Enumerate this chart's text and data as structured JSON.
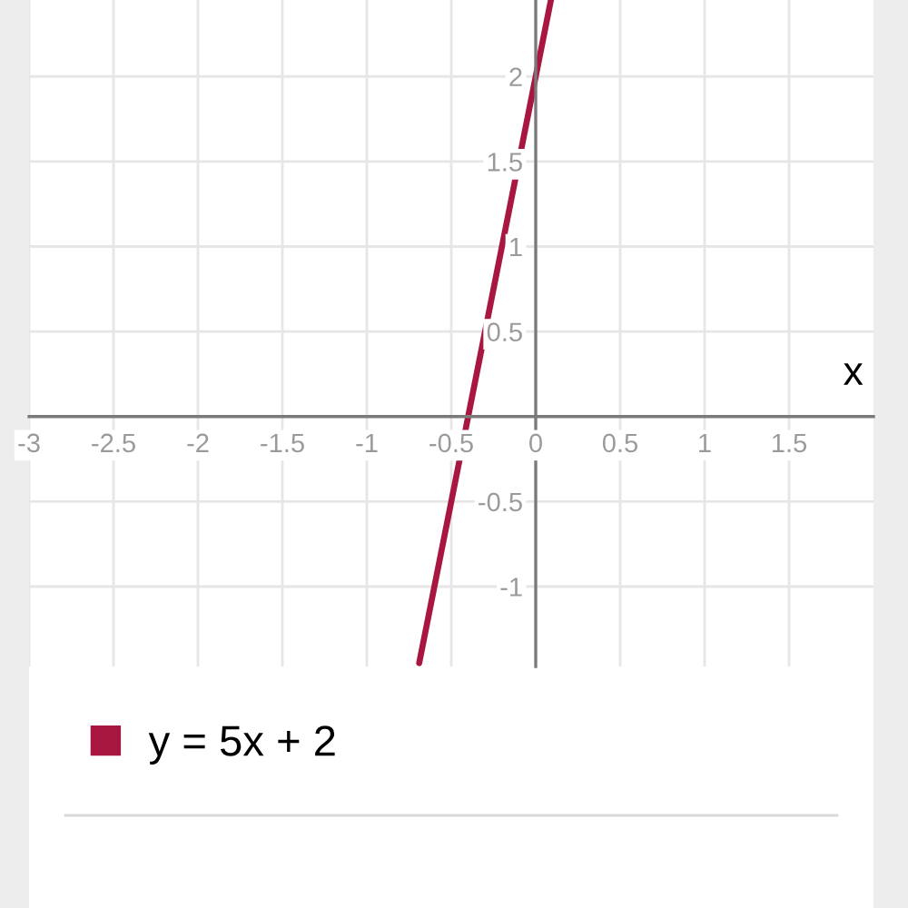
{
  "chart_data": {
    "type": "line",
    "xlabel": "x",
    "x": [
      -0.69,
      -0.4,
      0,
      0.09
    ],
    "series": [
      {
        "name": "y = 5x + 2",
        "color": "#a8173f",
        "values": [
          -1.45,
          0,
          2,
          2.45
        ]
      }
    ],
    "xlim": [
      -3,
      2
    ],
    "ylim": [
      -1.47,
      2.45
    ],
    "xticks": [
      -3,
      -2.5,
      -2,
      -1.5,
      -1,
      -0.5,
      0,
      0.5,
      1,
      1.5
    ],
    "yticks": [
      -1,
      -0.5,
      0.5,
      1,
      1.5,
      2
    ],
    "grid": true,
    "legend": "bottom",
    "line_style": "solid"
  }
}
